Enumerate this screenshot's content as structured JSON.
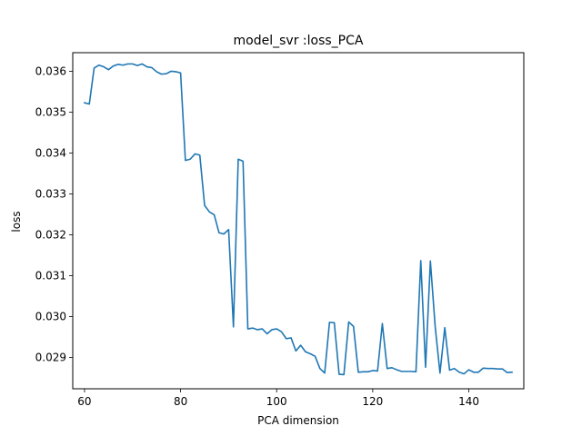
{
  "chart_data": {
    "type": "line",
    "title": "model_svr :loss_PCA",
    "xlabel": "PCA dimension",
    "ylabel": "loss",
    "xlim": [
      57.55,
      151.45
    ],
    "ylim": [
      0.028235,
      0.036455
    ],
    "xticks": [
      60,
      80,
      100,
      120,
      140
    ],
    "xtick_labels": [
      "60",
      "80",
      "100",
      "120",
      "140"
    ],
    "yticks": [
      0.029,
      0.03,
      0.031,
      0.032,
      0.033,
      0.034,
      0.035,
      0.036
    ],
    "ytick_labels": [
      "0.029",
      "0.030",
      "0.031",
      "0.032",
      "0.033",
      "0.034",
      "0.035",
      "0.036"
    ],
    "grid": false,
    "legend": "none",
    "series": [
      {
        "color": "#1f77b4",
        "x": [
          60,
          61,
          62,
          63,
          64,
          65,
          66,
          67,
          68,
          69,
          70,
          71,
          72,
          73,
          74,
          75,
          76,
          77,
          78,
          79,
          80,
          81,
          82,
          83,
          84,
          85,
          86,
          87,
          88,
          89,
          90,
          91,
          92,
          93,
          94,
          95,
          96,
          97,
          98,
          99,
          100,
          101,
          102,
          103,
          104,
          105,
          106,
          107,
          108,
          109,
          110,
          111,
          112,
          113,
          114,
          115,
          116,
          117,
          118,
          119,
          120,
          121,
          122,
          123,
          124,
          125,
          126,
          127,
          128,
          129,
          130,
          131,
          132,
          133,
          134,
          135,
          136,
          137,
          138,
          139,
          140,
          141,
          142,
          143,
          144,
          145,
          146,
          147,
          148,
          149
        ],
        "y": [
          0.03523,
          0.0352,
          0.03608,
          0.03615,
          0.03611,
          0.03604,
          0.03613,
          0.03617,
          0.03615,
          0.03618,
          0.03618,
          0.03614,
          0.03618,
          0.03611,
          0.03609,
          0.03599,
          0.03593,
          0.03594,
          0.036,
          0.03599,
          0.03596,
          0.03382,
          0.03385,
          0.03398,
          0.03395,
          0.03272,
          0.03256,
          0.03249,
          0.03205,
          0.03202,
          0.03213,
          0.02975,
          0.03385,
          0.0338,
          0.0297,
          0.02972,
          0.02968,
          0.0297,
          0.02958,
          0.02968,
          0.0297,
          0.02963,
          0.02946,
          0.02948,
          0.02916,
          0.0293,
          0.02914,
          0.02909,
          0.02903,
          0.02873,
          0.02862,
          0.02986,
          0.02985,
          0.02859,
          0.02858,
          0.02987,
          0.02976,
          0.02864,
          0.02865,
          0.02865,
          0.02868,
          0.02867,
          0.02983,
          0.02873,
          0.02875,
          0.0287,
          0.02866,
          0.02866,
          0.02866,
          0.02865,
          0.03137,
          0.02876,
          0.03136,
          0.02976,
          0.02862,
          0.02973,
          0.02869,
          0.02873,
          0.02864,
          0.0286,
          0.0287,
          0.02864,
          0.02864,
          0.02874,
          0.02873,
          0.02873,
          0.02872,
          0.02872,
          0.02863,
          0.02864
        ]
      }
    ]
  }
}
